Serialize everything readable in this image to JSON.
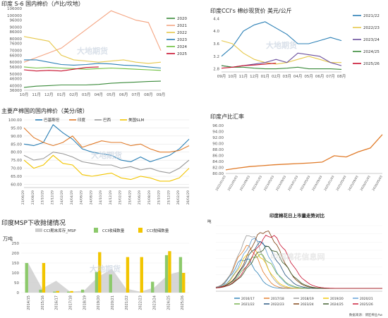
{
  "chart_data": [
    {
      "id": "s6",
      "type": "line",
      "title": "印度 S-6 国内棉价（卢比/坎地）",
      "xlabel": "",
      "ylabel": "",
      "categories": [
        "10月",
        "11月",
        "12月",
        "01月",
        "02月",
        "03月",
        "04月",
        "05月",
        "06月",
        "07月",
        "08月",
        "09月"
      ],
      "y_ticks": [
        "106000",
        "100000",
        "96000",
        "90000",
        "86000",
        "80000",
        "76000",
        "70000",
        "66000",
        "60000",
        "56000",
        "50000",
        "46000",
        "40000",
        "36000"
      ],
      "ylim": [
        36000,
        106000
      ],
      "legend_position": "right",
      "series": [
        {
          "name": "2020",
          "color": "#3a8a3a",
          "values": [
            38500,
            39500,
            40000,
            40500,
            40500,
            40500,
            41000,
            42000,
            42500,
            43000,
            43500,
            43800
          ]
        },
        {
          "name": "2021",
          "color": "#f4a582",
          "values": [
            60000,
            64000,
            68000,
            72000,
            80000,
            88000,
            96000,
            104000,
            100000,
            96000,
            94000,
            70000
          ]
        },
        {
          "name": "2022",
          "color": "#e6c84c",
          "values": [
            82000,
            80000,
            78000,
            66000,
            62000,
            61000,
            60000,
            61000,
            62000,
            60000,
            59000,
            60000
          ]
        },
        {
          "name": "2023",
          "color": "#2a7fb5",
          "values": [
            62000,
            62000,
            60000,
            58000,
            57500,
            58000,
            59000,
            58500,
            57500,
            57000,
            56000,
            55000
          ]
        },
        {
          "name": "2024",
          "color": "#6cbf3c",
          "values": [
            56000,
            55000,
            55500,
            55000,
            54500,
            54000,
            54500,
            55000,
            54500,
            54000,
            53500,
            53000
          ]
        },
        {
          "name": "2025",
          "color": "#c8102e",
          "values": [
            53500,
            52500,
            53000,
            52500,
            54000,
            55500,
            56000,
            null,
            null,
            null,
            null,
            null
          ]
        }
      ],
      "watermark": "大地期货"
    },
    {
      "id": "cc",
      "type": "line",
      "title": "印度CCI's 棉纱现货价  美元/公斤",
      "xlabel": "",
      "ylabel": "",
      "categories": [
        "09月",
        "10月",
        "11月",
        "12月",
        "01月",
        "02月",
        "03月",
        "04月",
        "05月",
        "06月",
        "07月",
        "08月"
      ],
      "y_ticks": [
        "4.4",
        "4.0",
        "3.6",
        "3.2",
        "2.8"
      ],
      "ylim": [
        2.7,
        4.5
      ],
      "legend_position": "right",
      "series": [
        {
          "name": "2021/22",
          "color": "#2a7fb5",
          "values": [
            3.2,
            3.5,
            4.0,
            4.2,
            4.3,
            4.1,
            3.9,
            3.6,
            3.6,
            3.7,
            3.8,
            3.7
          ]
        },
        {
          "name": "2022/23",
          "color": "#e6c84c",
          "values": [
            3.7,
            3.6,
            3.3,
            3.1,
            3.0,
            2.95,
            3.0,
            3.1,
            3.2,
            3.1,
            3.0,
            3.0
          ]
        },
        {
          "name": "2023/24",
          "color": "#6a4e9c",
          "values": [
            2.9,
            2.85,
            2.9,
            2.95,
            3.0,
            3.1,
            3.0,
            3.3,
            3.25,
            3.2,
            3.0,
            2.9
          ]
        },
        {
          "name": "2024/25",
          "color": "#3a8a3a",
          "values": [
            2.9,
            2.85,
            2.85,
            2.82,
            2.8,
            2.8,
            2.82,
            2.85,
            2.8,
            2.8,
            2.8,
            2.78
          ]
        },
        {
          "name": "2025/26",
          "color": "#c8102e",
          "values": [
            2.82,
            2.85,
            2.9,
            2.92,
            2.95,
            2.98,
            null,
            null,
            null,
            null,
            null,
            null
          ]
        }
      ],
      "watermark": "大地期货"
    },
    {
      "id": "zc",
      "type": "line",
      "title": "主要产棉国的国内棉价（美分/磅）",
      "xlabel": "",
      "ylabel": "",
      "x_ticks": [
        "23/06/29",
        "23/08/29",
        "23/10/29",
        "23/12/29",
        "24/02/29",
        "24/04/29",
        "24/06/29",
        "24/08/29",
        "24/10/29",
        "24/12/29",
        "25/02/29",
        "25/04/29",
        "25/06/29",
        "25/08/29",
        "25/10/29",
        "25/12/29",
        "26/02/29",
        "26/04/29"
      ],
      "y_ticks": [
        "100.00",
        "95.00",
        "90.00",
        "85.00",
        "80.00",
        "75.00",
        "70.00",
        "65.00",
        "60.00"
      ],
      "ylim": [
        58,
        100
      ],
      "legend_position": "top",
      "series": [
        {
          "name": "巴基斯坦",
          "color": "#2a7fb5",
          "values": [
            85,
            84,
            86,
            97,
            92,
            88,
            82,
            80,
            79,
            78,
            75,
            74,
            77,
            74,
            76,
            78,
            82,
            88
          ]
        },
        {
          "name": "印度",
          "color": "#e07a28",
          "values": [
            95,
            89,
            86,
            84,
            86,
            90,
            83,
            85,
            87,
            86,
            86,
            84,
            85,
            82,
            80,
            80,
            81,
            84
          ]
        },
        {
          "name": "巴西",
          "color": "#999999",
          "values": [
            78,
            75,
            76,
            80,
            79,
            77,
            74,
            73,
            72,
            72,
            70,
            71,
            69,
            70,
            68,
            67,
            70,
            75
          ]
        },
        {
          "name": "美国SLM",
          "color": "#f2c500",
          "values": [
            75,
            70,
            72,
            78,
            73,
            72,
            66,
            65,
            66,
            67,
            64,
            63,
            65,
            64,
            62,
            62,
            64,
            70
          ]
        }
      ],
      "watermark": "大地期货"
    },
    {
      "id": "fx",
      "type": "line",
      "title": "印度卢比汇率",
      "xlabel": "",
      "ylabel": "",
      "x_ticks": [
        "2022/01/03",
        "2022/05/03",
        "2022/09/03",
        "2023/01/03",
        "2023/05/03",
        "2023/09/03",
        "2024/01/03",
        "2024/05/03",
        "2024/09/03",
        "2025/01/03",
        "2025/05/03",
        "2025/09/03",
        "2026/01/03",
        "2026/05/03"
      ],
      "y_ticks": [
        "96.00",
        "94.00",
        "92.00",
        "90.00",
        "88.00",
        "86.00",
        "84.00",
        "82.00",
        "80.00"
      ],
      "ylim": [
        80,
        96
      ],
      "legend_position": "none",
      "series": [
        {
          "name": "",
          "color": "#e07a28",
          "values": [
            81.2,
            81.8,
            82.3,
            82.6,
            82.9,
            83.1,
            83.3,
            83.5,
            83.8,
            85.9,
            85.5,
            87.2,
            88.5,
            93.0
          ]
        }
      ]
    },
    {
      "id": "msp",
      "type": "bar",
      "title": "印度MSP下收抛储情况",
      "ylabel": "万吨",
      "legend_position": "top",
      "categories": [
        "2014/15",
        "2015/16",
        "2016/17",
        "2017/18",
        "2018/19",
        "2019/20",
        "2020/21",
        "2021/22",
        "2022/23",
        "2023/24",
        "2024/25",
        "2025/26"
      ],
      "y_ticks": [
        "250",
        "200",
        "150",
        "100",
        "50",
        "0"
      ],
      "ylim": [
        0,
        250
      ],
      "series": [
        {
          "name": "CCI期末库存_MSP",
          "color": "#cccccc",
          "kind": "area",
          "values": [
            150,
            20,
            60,
            5,
            10,
            80,
            120,
            20,
            5,
            25,
            90,
            110
          ]
        },
        {
          "name": "CCI收储数量",
          "color": "#8cc96b",
          "kind": "bar",
          "values": [
            150,
            15,
            5,
            5,
            15,
            105,
            92,
            0,
            0,
            55,
            190,
            180
          ]
        },
        {
          "name": "CCI抛储数量",
          "color": "#f2c500",
          "kind": "bar",
          "values": [
            0,
            150,
            8,
            8,
            0,
            205,
            0,
            180,
            180,
            0,
            210,
            100
          ]
        }
      ],
      "watermark": "大地期货"
    },
    {
      "id": "arr",
      "type": "line",
      "title": "印度棉花日上市量走势对比",
      "ylabel": "吨",
      "source": "数据来源：博匠棉业Aw",
      "ylim": [
        0,
        100
      ],
      "legend_position": "bottom",
      "series": [
        {
          "name": "2016/17",
          "color": "#2a7fb5"
        },
        {
          "name": "2017/18",
          "color": "#e07a28"
        },
        {
          "name": "2018/19",
          "color": "#999999"
        },
        {
          "name": "2019/20",
          "color": "#f2c500"
        },
        {
          "name": "2020/21",
          "color": "#5b9bd5"
        },
        {
          "name": "2021/22",
          "color": "#70ad47"
        },
        {
          "name": "2022/23",
          "color": "#1f4e79"
        },
        {
          "name": "2023/24",
          "color": "#7a3a0a"
        },
        {
          "name": "2024/25",
          "color": "#375623"
        },
        {
          "name": "2025/26",
          "color": "#c8102e"
        }
      ],
      "watermark": "中国棉花信息网"
    }
  ]
}
